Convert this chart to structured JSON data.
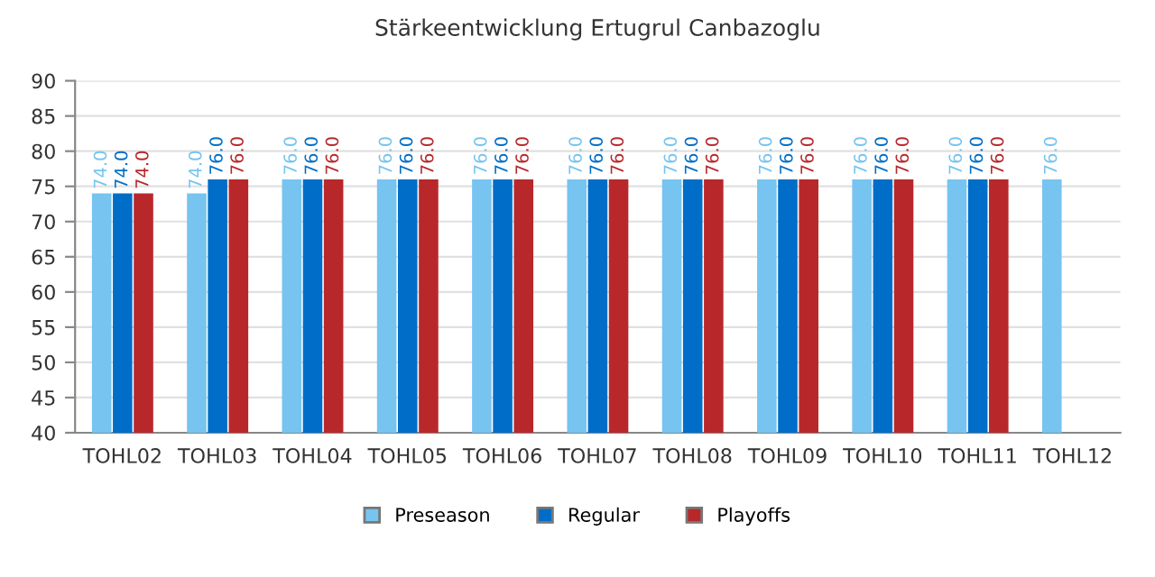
{
  "chart_data": {
    "type": "bar",
    "title": "Stärkeentwicklung Ertugrul Canbazoglu",
    "categories": [
      "TOHL02",
      "TOHL03",
      "TOHL04",
      "TOHL05",
      "TOHL06",
      "TOHL07",
      "TOHL08",
      "TOHL09",
      "TOHL10",
      "TOHL11",
      "TOHL12"
    ],
    "series": [
      {
        "name": "Preseason",
        "color": "#76c4ef",
        "values": [
          74,
          74,
          76,
          76,
          76,
          76,
          76,
          76,
          76,
          76,
          76
        ],
        "value_labels": [
          "74.0",
          "74.0",
          "76.0",
          "76.0",
          "76.0",
          "76.0",
          "76.0",
          "76.0",
          "76.0",
          "76.0",
          "76.0"
        ]
      },
      {
        "name": "Regular",
        "color": "#006ec8",
        "values": [
          74,
          76,
          76,
          76,
          76,
          76,
          76,
          76,
          76,
          76,
          null
        ],
        "value_labels": [
          "74.0",
          "76.0",
          "76.0",
          "76.0",
          "76.0",
          "76.0",
          "76.0",
          "76.0",
          "76.0",
          "76.0",
          null
        ]
      },
      {
        "name": "Playoffs",
        "color": "#b8282b",
        "values": [
          74,
          76,
          76,
          76,
          76,
          76,
          76,
          76,
          76,
          76,
          null
        ],
        "value_labels": [
          "74.0",
          "76.0",
          "76.0",
          "76.0",
          "76.0",
          "76.0",
          "76.0",
          "76.0",
          "76.0",
          "76.0",
          null
        ]
      }
    ],
    "ylim": [
      40,
      90
    ],
    "yticks": [
      40,
      45,
      50,
      55,
      60,
      65,
      70,
      75,
      80,
      85,
      90
    ],
    "grid": "y",
    "legend": "bottom"
  }
}
